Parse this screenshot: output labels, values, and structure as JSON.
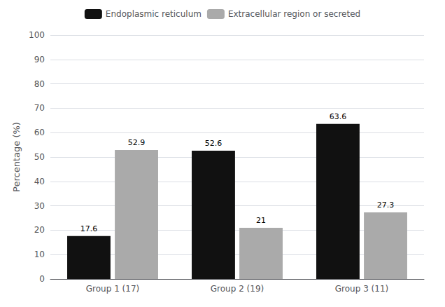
{
  "chart_data": {
    "type": "bar",
    "ylabel": "Percentage (%)",
    "categories": [
      "Group 1 (17)",
      "Group 2 (19)",
      "Group 3 (11)"
    ],
    "series": [
      {
        "name": "Endoplasmic reticulum",
        "color": "#111111",
        "values": [
          17.6,
          52.6,
          63.6
        ]
      },
      {
        "name": "Extracellular region or secreted",
        "color": "#aaaaaa",
        "values": [
          52.9,
          21,
          27.3
        ]
      }
    ],
    "ylim": [
      0,
      100
    ],
    "yticks": [
      0,
      10,
      20,
      30,
      40,
      50,
      60,
      70,
      80,
      90,
      100
    ],
    "grid": true,
    "legend": "top",
    "data_labels": true
  }
}
